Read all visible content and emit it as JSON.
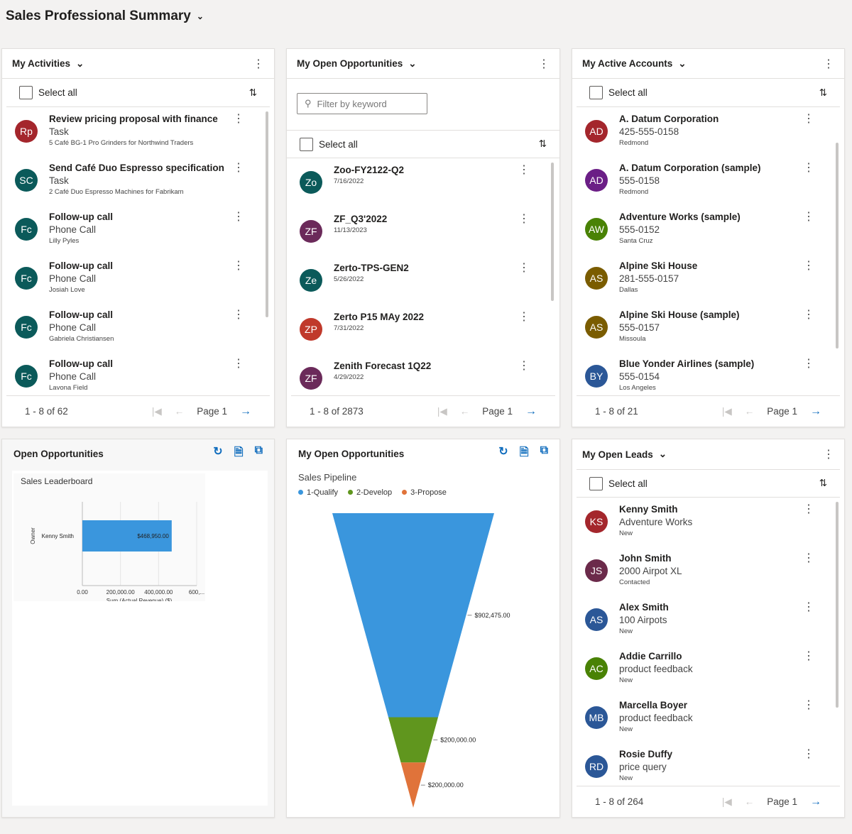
{
  "page": {
    "title": "Sales Professional Summary"
  },
  "activities": {
    "title": "My Activities",
    "select_all": "Select all",
    "footer": "1 - 8 of 62",
    "page": "Page 1",
    "items": [
      {
        "initials": "Rp",
        "color": "#a4262c",
        "title": "Review pricing proposal with finance",
        "sub": "Task",
        "detail": "5 Café BG-1 Pro Grinders for Northwind Traders"
      },
      {
        "initials": "SC",
        "color": "#0b5a5a",
        "title": "Send Café Duo Espresso specification",
        "sub": "Task",
        "detail": "2 Café Duo Espresso Machines for Fabrikam"
      },
      {
        "initials": "Fc",
        "color": "#0b5a5a",
        "title": "Follow-up call",
        "sub": "Phone Call",
        "detail": "Lilly Pyles"
      },
      {
        "initials": "Fc",
        "color": "#0b5a5a",
        "title": "Follow-up call",
        "sub": "Phone Call",
        "detail": "Josiah Love"
      },
      {
        "initials": "Fc",
        "color": "#0b5a5a",
        "title": "Follow-up call",
        "sub": "Phone Call",
        "detail": "Gabriela Christiansen"
      },
      {
        "initials": "Fc",
        "color": "#0b5a5a",
        "title": "Follow-up call",
        "sub": "Phone Call",
        "detail": "Lavona Field"
      }
    ]
  },
  "opportunities": {
    "title": "My Open Opportunities",
    "filter_placeholder": "Filter by keyword",
    "select_all": "Select all",
    "footer": "1 - 8 of 2873",
    "page": "Page 1",
    "items": [
      {
        "initials": "Zo",
        "color": "#0b5a5a",
        "title": "Zoo-FY2122-Q2",
        "detail": "7/16/2022"
      },
      {
        "initials": "ZF",
        "color": "#6b2a5a",
        "title": "ZF_Q3'2022",
        "detail": "11/13/2023"
      },
      {
        "initials": "Ze",
        "color": "#0b5a5a",
        "title": "Zerto-TPS-GEN2",
        "detail": "5/26/2022"
      },
      {
        "initials": "ZP",
        "color": "#c0392b",
        "title": "Zerto P15 MAy 2022",
        "detail": "7/31/2022"
      },
      {
        "initials": "ZF",
        "color": "#6b2a5a",
        "title": "Zenith Forecast 1Q22",
        "detail": "4/29/2022"
      }
    ]
  },
  "accounts": {
    "title": "My Active Accounts",
    "select_all": "Select all",
    "footer": "1 - 8 of 21",
    "page": "Page 1",
    "items": [
      {
        "initials": "AD",
        "color": "#a4262c",
        "title": "A. Datum Corporation",
        "sub": "425-555-0158",
        "detail": "Redmond"
      },
      {
        "initials": "AD",
        "color": "#6b1e86",
        "title": "A. Datum Corporation (sample)",
        "sub": "555-0158",
        "detail": "Redmond"
      },
      {
        "initials": "AW",
        "color": "#498205",
        "title": "Adventure Works (sample)",
        "sub": "555-0152",
        "detail": "Santa Cruz"
      },
      {
        "initials": "AS",
        "color": "#7a5c00",
        "title": "Alpine Ski House",
        "sub": "281-555-0157",
        "detail": "Dallas"
      },
      {
        "initials": "AS",
        "color": "#7a5c00",
        "title": "Alpine Ski House (sample)",
        "sub": "555-0157",
        "detail": "Missoula"
      },
      {
        "initials": "BY",
        "color": "#2b5797",
        "title": "Blue Yonder Airlines (sample)",
        "sub": "555-0154",
        "detail": "Los Angeles"
      }
    ]
  },
  "leads": {
    "title": "My Open Leads",
    "select_all": "Select all",
    "footer": "1 - 8 of 264",
    "page": "Page 1",
    "items": [
      {
        "initials": "KS",
        "color": "#a4262c",
        "title": "Kenny Smith",
        "sub": "Adventure Works",
        "detail": "New"
      },
      {
        "initials": "JS",
        "color": "#6b2a4a",
        "title": "John Smith",
        "sub": "2000 Airpot XL",
        "detail": "Contacted"
      },
      {
        "initials": "AS",
        "color": "#2b5797",
        "title": "Alex Smith",
        "sub": "100 Airpots",
        "detail": "New"
      },
      {
        "initials": "AC",
        "color": "#498205",
        "title": "Addie Carrillo",
        "sub": "product feedback",
        "detail": "New"
      },
      {
        "initials": "MB",
        "color": "#2b5797",
        "title": "Marcella Boyer",
        "sub": "product feedback",
        "detail": "New"
      },
      {
        "initials": "RD",
        "color": "#2b5797",
        "title": "Rosie Duffy",
        "sub": "price query",
        "detail": "New"
      }
    ]
  },
  "leaderboard_panel": {
    "title": "Open Opportunities"
  },
  "pipeline_panel": {
    "title": "My Open Opportunities"
  },
  "chart_data": [
    {
      "type": "bar",
      "orientation": "horizontal",
      "title": "Sales Leaderboard",
      "ylabel": "Owner",
      "xlabel": "Sum (Actual Revenue) ($)",
      "categories": [
        "Kenny Smith"
      ],
      "values": [
        468950
      ],
      "data_labels": [
        "$468,950.00"
      ],
      "x_ticks": [
        "0.00",
        "200,000.00",
        "400,000.00",
        "600,..."
      ],
      "xlim": [
        0,
        600000
      ],
      "color": "#3a96dd",
      "grid": true
    },
    {
      "type": "funnel",
      "title": "Sales Pipeline",
      "legend": "top-left",
      "categories": [
        "1-Qualify",
        "2-Develop",
        "3-Propose"
      ],
      "values": [
        902475,
        200000,
        200000
      ],
      "data_labels": [
        "$902,475.00",
        "$200,000.00",
        "$200,000.00"
      ],
      "colors": [
        "#3a96dd",
        "#60961e",
        "#e0733a"
      ]
    }
  ]
}
